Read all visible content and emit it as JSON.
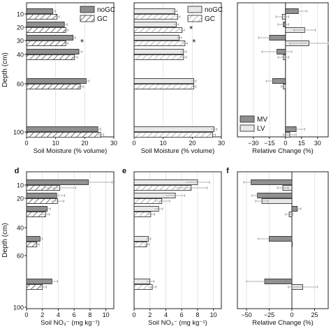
{
  "colors": {
    "dark_fill": "#8f8f8f",
    "light_fill": "#e8e8e8",
    "outline": "#222222",
    "grid": "#dddddd",
    "error": "#999999"
  },
  "chart_data": [
    {
      "panel": "a",
      "type": "bar",
      "orientation": "horizontal",
      "panel_label": "",
      "xlabel": "Soil Moisture (% volume)",
      "ylabel": "Depth (cm)",
      "xlim": [
        0,
        30
      ],
      "xticks": [
        0,
        10,
        20,
        30
      ],
      "ylim": [
        0,
        105
      ],
      "yticks": [
        10,
        20,
        30,
        40,
        60,
        100
      ],
      "grid": "vertical",
      "legend": {
        "position": "top-right",
        "entries": [
          "noGC",
          "GC"
        ]
      },
      "asterisks": [
        30
      ],
      "asterisk_label": "*",
      "groups": [
        {
          "depth": 10,
          "noGC": 9.0,
          "noGC_err": 1.0,
          "GC": 10.5,
          "GC_err": 0.8
        },
        {
          "depth": 20,
          "noGC": 13.0,
          "noGC_err": 1.0,
          "GC": 13.5,
          "GC_err": 0.8
        },
        {
          "depth": 30,
          "noGC": 16.0,
          "noGC_err": 0.8,
          "GC": 13.5,
          "GC_err": 0.8
        },
        {
          "depth": 40,
          "noGC": 18.0,
          "noGC_err": 1.0,
          "GC": 16.5,
          "GC_err": 1.0
        },
        {
          "depth": 60,
          "noGC": 20.5,
          "noGC_err": 1.0,
          "GC": 18.5,
          "GC_err": 1.0
        },
        {
          "depth": 100,
          "noGC": 24.5,
          "noGC_err": 1.0,
          "GC": 25.5,
          "GC_err": 1.0
        }
      ]
    },
    {
      "panel": "b",
      "type": "bar",
      "orientation": "horizontal",
      "panel_label": "",
      "xlabel": "Soil Moisture (% volume)",
      "ylabel": "",
      "xlim": [
        0,
        30
      ],
      "xticks": [
        0,
        10,
        20,
        30
      ],
      "ylim": [
        0,
        105
      ],
      "grid": "vertical",
      "legend": {
        "position": "top-right",
        "entries": [
          "noGC",
          "GC"
        ]
      },
      "asterisks": [
        20,
        30
      ],
      "asterisk_label": "*",
      "groups": [
        {
          "depth": 10,
          "noGC": 14.0,
          "noGC_err": 0.8,
          "GC": 15.0,
          "GC_err": 0.8
        },
        {
          "depth": 20,
          "noGC": 14.5,
          "noGC_err": 0.8,
          "GC": 16.5,
          "GC_err": 0.8
        },
        {
          "depth": 30,
          "noGC": 15.5,
          "noGC_err": 0.8,
          "GC": 17.5,
          "GC_err": 0.8
        },
        {
          "depth": 40,
          "noGC": 17.0,
          "noGC_err": 1.0,
          "GC": 17.0,
          "GC_err": 1.0
        },
        {
          "depth": 60,
          "noGC": 20.5,
          "noGC_err": 0.8,
          "GC": 20.5,
          "GC_err": 0.8
        },
        {
          "depth": 100,
          "noGC": 27.5,
          "noGC_err": 1.0,
          "GC": 27.0,
          "GC_err": 1.0
        }
      ]
    },
    {
      "panel": "c",
      "type": "bar",
      "orientation": "horizontal",
      "panel_label": "",
      "xlabel": "Relative Change (%)",
      "ylabel": "",
      "xlim": [
        -45,
        40
      ],
      "xticks": [
        -30,
        -15,
        0,
        15,
        30
      ],
      "ylim": [
        0,
        105
      ],
      "grid": "vertical",
      "zero_line": true,
      "legend": {
        "position": "bottom-left",
        "entries": [
          "MV",
          "LV"
        ]
      },
      "groups": [
        {
          "depth": 10,
          "MV": 12,
          "MV_err": 8,
          "LV": -3,
          "LV_err": 6
        },
        {
          "depth": 20,
          "MV": -2,
          "MV_err": 5,
          "LV": 18,
          "LV_err": 10
        },
        {
          "depth": 30,
          "MV": -15,
          "MV_err": 10,
          "LV": 22,
          "LV_err": 18
        },
        {
          "depth": 40,
          "MV": -8,
          "MV_err": 14,
          "LV": -2,
          "LV_err": 5
        },
        {
          "depth": 60,
          "MV": -12,
          "MV_err": 6,
          "LV": -2,
          "LV_err": 2
        },
        {
          "depth": 100,
          "MV": 10,
          "MV_err": 8,
          "LV": 4,
          "LV_err": 6
        }
      ]
    },
    {
      "panel": "d",
      "type": "bar",
      "orientation": "horizontal",
      "panel_label": "d",
      "xlabel": "Soil NO₃⁻ (mg kg⁻¹)",
      "ylabel": "Depth (cm)",
      "xlim": [
        0,
        11
      ],
      "xticks": [
        0,
        2,
        4,
        6,
        8,
        10
      ],
      "ylim": [
        0,
        105
      ],
      "yticks": [
        10,
        20,
        40,
        60,
        100
      ],
      "grid": "vertical",
      "groups": [
        {
          "depth": 10,
          "noGC": 7.8,
          "noGC_err": 3.0,
          "GC": 4.2,
          "GC_err": 2.0
        },
        {
          "depth": 20,
          "noGC": 3.8,
          "noGC_err": 1.0,
          "GC": 3.9,
          "GC_err": 0.8
        },
        {
          "depth": 30,
          "noGC": 2.6,
          "noGC_err": 0.4,
          "GC": 2.4,
          "GC_err": 0.5
        },
        {
          "depth": 50,
          "noGC": 1.7,
          "noGC_err": 0.3,
          "GC": 1.3,
          "GC_err": 0.3
        },
        {
          "depth": 80,
          "noGC": 3.2,
          "noGC_err": 0.7,
          "GC": 2.0,
          "GC_err": 0.5
        }
      ]
    },
    {
      "panel": "e",
      "type": "bar",
      "orientation": "horizontal",
      "panel_label": "e",
      "xlabel": "Soil NO₃⁻ (mg kg⁻¹)",
      "ylabel": "",
      "xlim": [
        0,
        11
      ],
      "xticks": [
        0,
        2,
        4,
        6,
        8,
        10
      ],
      "ylim": [
        0,
        105
      ],
      "grid": "vertical",
      "groups": [
        {
          "depth": 10,
          "noGC": 8.0,
          "noGC_err": 1.5,
          "GC": 7.2,
          "GC_err": 2.0
        },
        {
          "depth": 20,
          "noGC": 5.2,
          "noGC_err": 1.2,
          "GC": 3.5,
          "GC_err": 1.0
        },
        {
          "depth": 30,
          "noGC": 3.1,
          "noGC_err": 0.5,
          "GC": 2.1,
          "GC_err": 0.5
        },
        {
          "depth": 50,
          "noGC": 1.8,
          "noGC_err": 0.3,
          "GC": 1.6,
          "GC_err": 0.3
        },
        {
          "depth": 80,
          "noGC": 2.0,
          "noGC_err": 0.5,
          "GC": 2.3,
          "GC_err": 0.5
        }
      ]
    },
    {
      "panel": "f",
      "type": "bar",
      "orientation": "horizontal",
      "panel_label": "f",
      "xlabel": "Relative Change (%)",
      "ylabel": "",
      "xlim": [
        -60,
        40
      ],
      "xticks": [
        -50,
        -25,
        0,
        25
      ],
      "ylim": [
        0,
        105
      ],
      "grid": "vertical",
      "zero_line": true,
      "groups": [
        {
          "depth": 10,
          "MV": -45,
          "MV_err": 8,
          "LV": -10,
          "LV_err": 6
        },
        {
          "depth": 20,
          "MV": -38,
          "MV_err": 6,
          "LV": -33,
          "LV_err": 7
        },
        {
          "depth": 30,
          "MV": 6,
          "MV_err": 4,
          "LV": -3,
          "LV_err": 4
        },
        {
          "depth": 50,
          "MV": -25,
          "MV_err": 12,
          "LV": 0,
          "LV_err": 0
        },
        {
          "depth": 80,
          "MV": -30,
          "MV_err": 20,
          "LV": 12,
          "LV_err": 16
        }
      ]
    }
  ]
}
